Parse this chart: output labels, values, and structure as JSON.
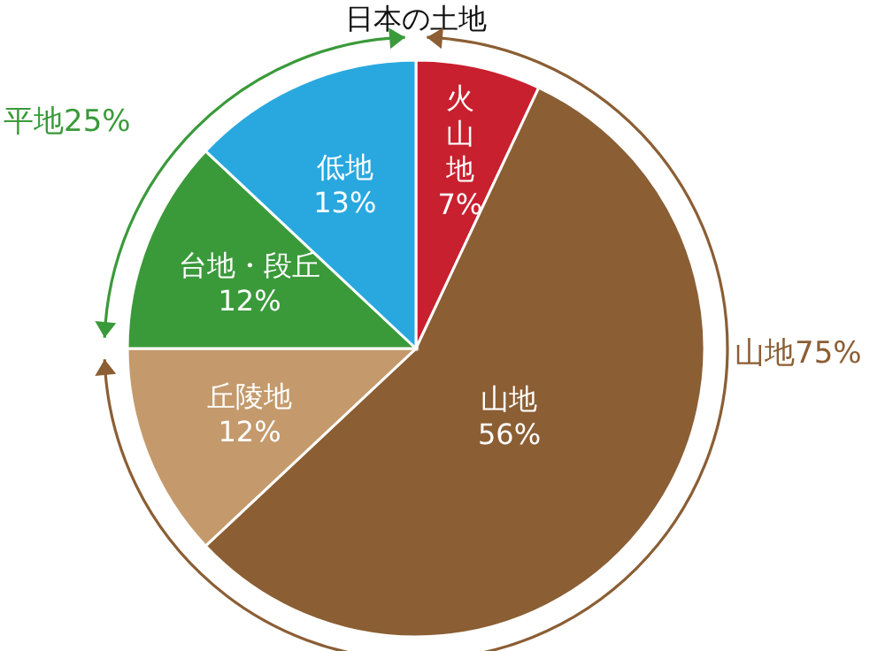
{
  "chart_data": {
    "type": "pie",
    "title": "日本の土地",
    "categories": [
      "火山地",
      "山地",
      "丘陵地",
      "台地・段丘",
      "低地"
    ],
    "values": [
      7,
      56,
      12,
      12,
      13
    ],
    "colors": [
      "#c8202f",
      "#8b5e34",
      "#c49a6c",
      "#3a9a3a",
      "#29a8e0"
    ],
    "value_labels": [
      "7%",
      "56%",
      "12%",
      "12%",
      "13%"
    ],
    "annotations": [
      "平地25%",
      "山地75%"
    ]
  }
}
